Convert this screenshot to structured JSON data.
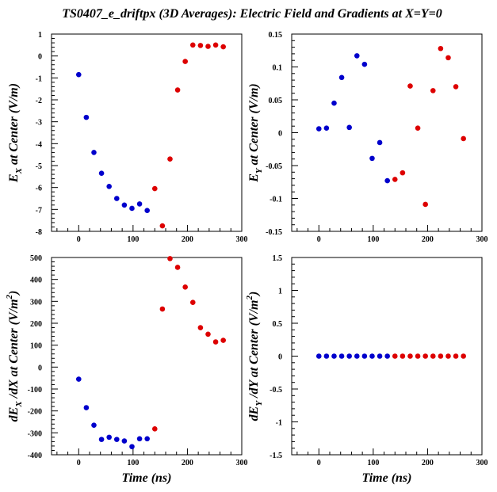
{
  "figure_title": "TS0407_e_driftpx (3D Averages): Electric Field and Gradients at X=Y=0",
  "colors": {
    "series_1": "#0000cc",
    "series_2": "#dd0000"
  },
  "chart_data": [
    {
      "type": "scatter",
      "panel": "top-left",
      "ylabel": {
        "main": "E",
        "sub": "X",
        "rest": " at Center (V/m)"
      },
      "xlabel": "",
      "xlim": [
        -50,
        300
      ],
      "ylim": [
        -8,
        1
      ],
      "xticks": [
        0,
        100,
        200,
        300
      ],
      "xticklabels": [
        "0",
        "100",
        "200",
        "300"
      ],
      "yticks": [
        1,
        0,
        -1,
        -2,
        -3,
        -4,
        -5,
        -6,
        -7,
        -8
      ],
      "yticklabels": [
        "1",
        "0",
        "-1",
        "-2",
        "-3",
        "-4",
        "-5",
        "-6",
        "-7",
        "-8"
      ],
      "series": [
        {
          "color": "#0000cc",
          "x": [
            0,
            14,
            28,
            42,
            56,
            70,
            84,
            98,
            112,
            126
          ],
          "y": [
            -0.85,
            -2.8,
            -4.4,
            -5.35,
            -5.95,
            -6.5,
            -6.8,
            -6.95,
            -6.75,
            -7.05
          ]
        },
        {
          "color": "#dd0000",
          "x": [
            140,
            154,
            168,
            182,
            196,
            210,
            224,
            238,
            252,
            266
          ],
          "y": [
            -6.05,
            -7.75,
            -4.7,
            -1.55,
            -0.25,
            0.5,
            0.48,
            0.44,
            0.5,
            0.42
          ]
        }
      ]
    },
    {
      "type": "scatter",
      "panel": "top-right",
      "ylabel": {
        "main": "E",
        "sub": "Y",
        "rest": " at Center (V/m)"
      },
      "xlabel": "",
      "xlim": [
        -50,
        300
      ],
      "ylim": [
        -0.15,
        0.15
      ],
      "xticks": [
        0,
        100,
        200,
        300
      ],
      "xticklabels": [
        "0",
        "100",
        "200",
        "300"
      ],
      "yticks": [
        0.15,
        0.1,
        0.05,
        0,
        -0.05,
        -0.1,
        -0.15
      ],
      "yticklabels": [
        "0.15",
        "0.1",
        "0.05",
        "0",
        "-0.05",
        "-0.1",
        "-0.15"
      ],
      "series": [
        {
          "color": "#0000cc",
          "x": [
            0,
            14,
            28,
            42,
            56,
            70,
            84,
            98,
            112,
            126
          ],
          "y": [
            0.006,
            0.007,
            0.045,
            0.084,
            0.008,
            0.117,
            0.104,
            -0.039,
            -0.015,
            -0.073
          ]
        },
        {
          "color": "#dd0000",
          "x": [
            140,
            154,
            168,
            182,
            196,
            210,
            224,
            238,
            252,
            266
          ],
          "y": [
            -0.071,
            -0.061,
            0.071,
            0.007,
            -0.109,
            0.064,
            0.128,
            0.114,
            0.07,
            -0.009
          ]
        }
      ]
    },
    {
      "type": "scatter",
      "panel": "bottom-left",
      "ylabel": {
        "main": "dE",
        "sub": "X",
        "rest": " /dX at Center (V/m",
        "sup": "2",
        "end": ")"
      },
      "xlabel": "Time (ns)",
      "xlim": [
        -50,
        300
      ],
      "ylim": [
        -400,
        500
      ],
      "xticks": [
        0,
        100,
        200,
        300
      ],
      "xticklabels": [
        "0",
        "100",
        "200",
        "300"
      ],
      "yticks": [
        500,
        400,
        300,
        200,
        100,
        0,
        -100,
        -200,
        -300,
        -400
      ],
      "yticklabels": [
        "500",
        "400",
        "300",
        "200",
        "100",
        "0",
        "-100",
        "-200",
        "-300",
        "-400"
      ],
      "series": [
        {
          "color": "#0000cc",
          "x": [
            0,
            14,
            28,
            42,
            56,
            70,
            84,
            98,
            112,
            126
          ],
          "y": [
            -55,
            -185,
            -265,
            -330,
            -320,
            -330,
            -337,
            -363,
            -327,
            -327
          ]
        },
        {
          "color": "#dd0000",
          "x": [
            140,
            154,
            168,
            182,
            196,
            210,
            224,
            238,
            252,
            266
          ],
          "y": [
            -282,
            265,
            495,
            455,
            365,
            295,
            180,
            150,
            115,
            122
          ]
        }
      ]
    },
    {
      "type": "scatter",
      "panel": "bottom-right",
      "ylabel": {
        "main": "dE",
        "sub": "Y",
        "rest": " /dY at Center (V/m",
        "sup": "2",
        "end": ")"
      },
      "xlabel": "Time (ns)",
      "xlim": [
        -50,
        300
      ],
      "ylim": [
        -1.5,
        1.5
      ],
      "xticks": [
        0,
        100,
        200,
        300
      ],
      "xticklabels": [
        "0",
        "100",
        "200",
        "300"
      ],
      "yticks": [
        1.5,
        1,
        0.5,
        0,
        -0.5,
        -1,
        -1.5
      ],
      "yticklabels": [
        "1.5",
        "1",
        "0.5",
        "0",
        "-0.5",
        "-1",
        "-1.5"
      ],
      "series": [
        {
          "color": "#0000cc",
          "x": [
            0,
            14,
            28,
            42,
            56,
            70,
            84,
            98,
            112,
            126
          ],
          "y": [
            0,
            0,
            0,
            0,
            0,
            0,
            0,
            0,
            0,
            0
          ]
        },
        {
          "color": "#dd0000",
          "x": [
            140,
            154,
            168,
            182,
            196,
            210,
            224,
            238,
            252,
            266
          ],
          "y": [
            0,
            0,
            0,
            0,
            0,
            0,
            0,
            0,
            0,
            0
          ]
        }
      ]
    }
  ]
}
